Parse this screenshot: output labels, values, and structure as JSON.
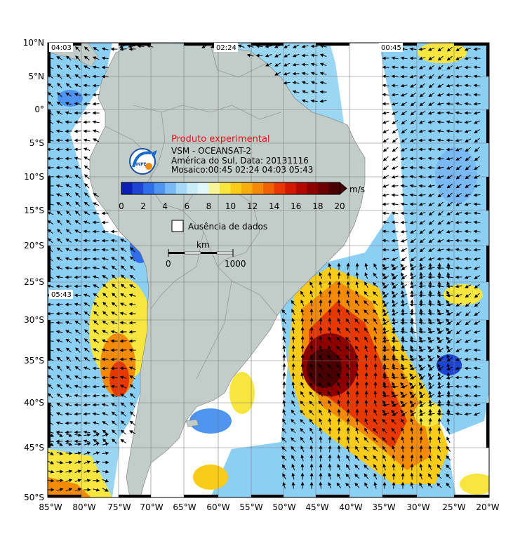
{
  "product": {
    "title": "Produto experimental",
    "line1": "VSM - OCEANSAT-2",
    "line2": "América do Sul, Data: 20131116",
    "line3": "Mosaico:00:45 02:24 04:03 05:43",
    "logo_text": "INPE"
  },
  "pass_times": [
    "04:03",
    "02:24",
    "00:45",
    "05:43"
  ],
  "colorbar": {
    "unit": "m/s",
    "ticks": [
      "0",
      "2",
      "4",
      "6",
      "8",
      "10",
      "12",
      "14",
      "16",
      "18",
      "20"
    ],
    "colors": [
      "#0a1fb4",
      "#1d45d2",
      "#2f6ee6",
      "#4f95f0",
      "#79b9f4",
      "#a6d8f8",
      "#c8ecf8",
      "#e0f6f8",
      "#f6f59a",
      "#f8e640",
      "#f8cc18",
      "#f6ae0e",
      "#f38a08",
      "#ee6204",
      "#e63800",
      "#d11900",
      "#b30800",
      "#8d0000",
      "#6a0000",
      "#4a0000"
    ]
  },
  "legend": {
    "no_data": "Ausência de dados",
    "scale_unit": "km",
    "scale_start": "0",
    "scale_end": "1000"
  },
  "axes": {
    "lat_labels": [
      "10°N",
      "5°N",
      "0°",
      "5°S",
      "10°S",
      "15°S",
      "20°S",
      "25°S",
      "30°S",
      "35°S",
      "40°S",
      "45°S",
      "50°S"
    ],
    "lon_labels": [
      "85°W",
      "80°W",
      "75°W",
      "70°W",
      "65°W",
      "60°W",
      "55°W",
      "50°W",
      "45°W",
      "40°W",
      "35°W",
      "30°W",
      "25°W",
      "20°W"
    ]
  },
  "colors": {
    "land": "#c2ccc8",
    "ocean_no_data": "#ffffff",
    "grid": "#7a7a7a",
    "title_red": "#e8141c"
  }
}
